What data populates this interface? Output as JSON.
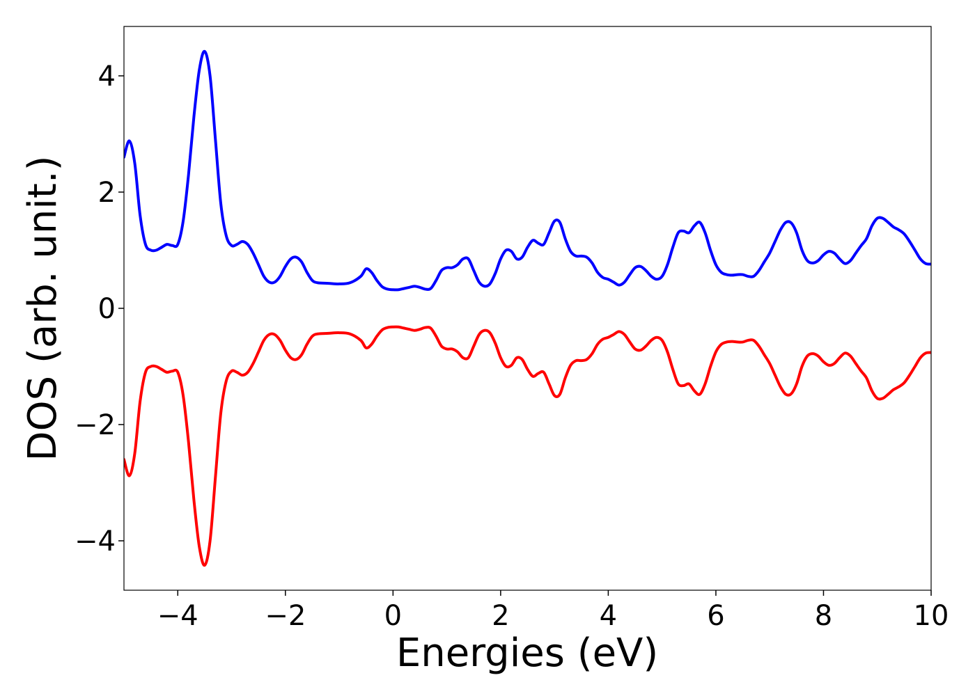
{
  "chart_data": {
    "type": "line",
    "title": "",
    "xlabel": "Energies (eV)",
    "ylabel": "DOS (arb. unit.)",
    "xlim": [
      -5,
      10
    ],
    "ylim": [
      -4.85,
      4.85
    ],
    "xticks": [
      -4,
      -2,
      0,
      2,
      4,
      6,
      8,
      10
    ],
    "xtick_labels": [
      "−4",
      "−2",
      "0",
      "2",
      "4",
      "6",
      "8",
      "10"
    ],
    "yticks": [
      -4,
      -2,
      0,
      2,
      4
    ],
    "ytick_labels": [
      "−4",
      "−2",
      "0",
      "2",
      "4"
    ],
    "grid": false,
    "legend": "none",
    "series": [
      {
        "color": "#0000ff",
        "points": [
          [
            -5.0,
            2.6
          ],
          [
            -4.9,
            2.88
          ],
          [
            -4.8,
            2.5
          ],
          [
            -4.7,
            1.6
          ],
          [
            -4.6,
            1.1
          ],
          [
            -4.5,
            1.0
          ],
          [
            -4.4,
            1.0
          ],
          [
            -4.3,
            1.05
          ],
          [
            -4.2,
            1.1
          ],
          [
            -4.1,
            1.08
          ],
          [
            -4.0,
            1.1
          ],
          [
            -3.9,
            1.5
          ],
          [
            -3.8,
            2.3
          ],
          [
            -3.7,
            3.3
          ],
          [
            -3.6,
            4.1
          ],
          [
            -3.5,
            4.42
          ],
          [
            -3.4,
            4.0
          ],
          [
            -3.3,
            2.9
          ],
          [
            -3.2,
            1.8
          ],
          [
            -3.1,
            1.25
          ],
          [
            -3.0,
            1.08
          ],
          [
            -2.9,
            1.1
          ],
          [
            -2.8,
            1.15
          ],
          [
            -2.7,
            1.1
          ],
          [
            -2.6,
            0.95
          ],
          [
            -2.5,
            0.75
          ],
          [
            -2.4,
            0.55
          ],
          [
            -2.3,
            0.45
          ],
          [
            -2.2,
            0.45
          ],
          [
            -2.1,
            0.55
          ],
          [
            -2.0,
            0.72
          ],
          [
            -1.9,
            0.85
          ],
          [
            -1.8,
            0.88
          ],
          [
            -1.7,
            0.8
          ],
          [
            -1.6,
            0.62
          ],
          [
            -1.5,
            0.48
          ],
          [
            -1.4,
            0.44
          ],
          [
            -1.2,
            0.43
          ],
          [
            -1.0,
            0.42
          ],
          [
            -0.8,
            0.44
          ],
          [
            -0.6,
            0.55
          ],
          [
            -0.5,
            0.68
          ],
          [
            -0.4,
            0.62
          ],
          [
            -0.3,
            0.48
          ],
          [
            -0.2,
            0.37
          ],
          [
            -0.1,
            0.33
          ],
          [
            0.0,
            0.32
          ],
          [
            0.1,
            0.32
          ],
          [
            0.2,
            0.34
          ],
          [
            0.3,
            0.36
          ],
          [
            0.4,
            0.38
          ],
          [
            0.5,
            0.36
          ],
          [
            0.6,
            0.33
          ],
          [
            0.7,
            0.34
          ],
          [
            0.8,
            0.48
          ],
          [
            0.9,
            0.65
          ],
          [
            1.0,
            0.7
          ],
          [
            1.1,
            0.7
          ],
          [
            1.2,
            0.75
          ],
          [
            1.3,
            0.85
          ],
          [
            1.4,
            0.85
          ],
          [
            1.5,
            0.65
          ],
          [
            1.6,
            0.45
          ],
          [
            1.7,
            0.38
          ],
          [
            1.8,
            0.42
          ],
          [
            1.9,
            0.6
          ],
          [
            2.0,
            0.85
          ],
          [
            2.1,
            1.0
          ],
          [
            2.2,
            0.98
          ],
          [
            2.3,
            0.85
          ],
          [
            2.4,
            0.88
          ],
          [
            2.5,
            1.05
          ],
          [
            2.6,
            1.17
          ],
          [
            2.7,
            1.12
          ],
          [
            2.8,
            1.1
          ],
          [
            2.9,
            1.3
          ],
          [
            3.0,
            1.5
          ],
          [
            3.1,
            1.48
          ],
          [
            3.2,
            1.2
          ],
          [
            3.3,
            0.98
          ],
          [
            3.4,
            0.9
          ],
          [
            3.5,
            0.9
          ],
          [
            3.6,
            0.88
          ],
          [
            3.7,
            0.78
          ],
          [
            3.8,
            0.62
          ],
          [
            3.9,
            0.53
          ],
          [
            4.0,
            0.5
          ],
          [
            4.1,
            0.45
          ],
          [
            4.2,
            0.4
          ],
          [
            4.3,
            0.45
          ],
          [
            4.4,
            0.58
          ],
          [
            4.5,
            0.7
          ],
          [
            4.6,
            0.72
          ],
          [
            4.7,
            0.65
          ],
          [
            4.8,
            0.55
          ],
          [
            4.9,
            0.5
          ],
          [
            5.0,
            0.55
          ],
          [
            5.1,
            0.75
          ],
          [
            5.2,
            1.05
          ],
          [
            5.3,
            1.3
          ],
          [
            5.4,
            1.33
          ],
          [
            5.5,
            1.3
          ],
          [
            5.6,
            1.42
          ],
          [
            5.7,
            1.48
          ],
          [
            5.8,
            1.3
          ],
          [
            5.9,
            1.0
          ],
          [
            6.0,
            0.75
          ],
          [
            6.1,
            0.62
          ],
          [
            6.2,
            0.58
          ],
          [
            6.3,
            0.57
          ],
          [
            6.4,
            0.58
          ],
          [
            6.5,
            0.58
          ],
          [
            6.6,
            0.55
          ],
          [
            6.7,
            0.55
          ],
          [
            6.8,
            0.65
          ],
          [
            6.9,
            0.8
          ],
          [
            7.0,
            0.95
          ],
          [
            7.1,
            1.15
          ],
          [
            7.2,
            1.35
          ],
          [
            7.3,
            1.48
          ],
          [
            7.4,
            1.47
          ],
          [
            7.5,
            1.3
          ],
          [
            7.6,
            1.0
          ],
          [
            7.7,
            0.82
          ],
          [
            7.8,
            0.78
          ],
          [
            7.9,
            0.82
          ],
          [
            8.0,
            0.92
          ],
          [
            8.1,
            0.98
          ],
          [
            8.2,
            0.95
          ],
          [
            8.3,
            0.85
          ],
          [
            8.4,
            0.77
          ],
          [
            8.5,
            0.82
          ],
          [
            8.6,
            0.95
          ],
          [
            8.7,
            1.08
          ],
          [
            8.8,
            1.2
          ],
          [
            8.9,
            1.42
          ],
          [
            9.0,
            1.55
          ],
          [
            9.1,
            1.55
          ],
          [
            9.2,
            1.48
          ],
          [
            9.3,
            1.4
          ],
          [
            9.4,
            1.35
          ],
          [
            9.5,
            1.28
          ],
          [
            9.6,
            1.15
          ],
          [
            9.7,
            1.0
          ],
          [
            9.8,
            0.85
          ],
          [
            9.9,
            0.77
          ],
          [
            10.0,
            0.76
          ]
        ]
      },
      {
        "color": "#ff0000",
        "points": [
          [
            -5.0,
            -2.6
          ],
          [
            -4.9,
            -2.88
          ],
          [
            -4.8,
            -2.5
          ],
          [
            -4.7,
            -1.6
          ],
          [
            -4.6,
            -1.1
          ],
          [
            -4.5,
            -1.0
          ],
          [
            -4.4,
            -1.0
          ],
          [
            -4.3,
            -1.05
          ],
          [
            -4.2,
            -1.1
          ],
          [
            -4.1,
            -1.08
          ],
          [
            -4.0,
            -1.1
          ],
          [
            -3.9,
            -1.5
          ],
          [
            -3.8,
            -2.3
          ],
          [
            -3.7,
            -3.3
          ],
          [
            -3.6,
            -4.1
          ],
          [
            -3.5,
            -4.42
          ],
          [
            -3.4,
            -4.0
          ],
          [
            -3.3,
            -2.9
          ],
          [
            -3.2,
            -1.8
          ],
          [
            -3.1,
            -1.25
          ],
          [
            -3.0,
            -1.08
          ],
          [
            -2.9,
            -1.1
          ],
          [
            -2.8,
            -1.15
          ],
          [
            -2.7,
            -1.1
          ],
          [
            -2.6,
            -0.95
          ],
          [
            -2.5,
            -0.75
          ],
          [
            -2.4,
            -0.55
          ],
          [
            -2.3,
            -0.45
          ],
          [
            -2.2,
            -0.45
          ],
          [
            -2.1,
            -0.55
          ],
          [
            -2.0,
            -0.72
          ],
          [
            -1.9,
            -0.85
          ],
          [
            -1.8,
            -0.88
          ],
          [
            -1.7,
            -0.8
          ],
          [
            -1.6,
            -0.62
          ],
          [
            -1.5,
            -0.48
          ],
          [
            -1.4,
            -0.44
          ],
          [
            -1.2,
            -0.43
          ],
          [
            -1.0,
            -0.42
          ],
          [
            -0.8,
            -0.44
          ],
          [
            -0.6,
            -0.55
          ],
          [
            -0.5,
            -0.68
          ],
          [
            -0.4,
            -0.62
          ],
          [
            -0.3,
            -0.48
          ],
          [
            -0.2,
            -0.37
          ],
          [
            -0.1,
            -0.33
          ],
          [
            0.0,
            -0.32
          ],
          [
            0.1,
            -0.32
          ],
          [
            0.2,
            -0.34
          ],
          [
            0.3,
            -0.36
          ],
          [
            0.4,
            -0.38
          ],
          [
            0.5,
            -0.36
          ],
          [
            0.6,
            -0.33
          ],
          [
            0.7,
            -0.34
          ],
          [
            0.8,
            -0.48
          ],
          [
            0.9,
            -0.65
          ],
          [
            1.0,
            -0.7
          ],
          [
            1.1,
            -0.7
          ],
          [
            1.2,
            -0.75
          ],
          [
            1.3,
            -0.85
          ],
          [
            1.4,
            -0.85
          ],
          [
            1.5,
            -0.65
          ],
          [
            1.6,
            -0.45
          ],
          [
            1.7,
            -0.38
          ],
          [
            1.8,
            -0.42
          ],
          [
            1.9,
            -0.6
          ],
          [
            2.0,
            -0.85
          ],
          [
            2.1,
            -1.0
          ],
          [
            2.2,
            -0.98
          ],
          [
            2.3,
            -0.85
          ],
          [
            2.4,
            -0.88
          ],
          [
            2.5,
            -1.05
          ],
          [
            2.6,
            -1.17
          ],
          [
            2.7,
            -1.12
          ],
          [
            2.8,
            -1.1
          ],
          [
            2.9,
            -1.3
          ],
          [
            3.0,
            -1.5
          ],
          [
            3.1,
            -1.48
          ],
          [
            3.2,
            -1.2
          ],
          [
            3.3,
            -0.98
          ],
          [
            3.4,
            -0.9
          ],
          [
            3.5,
            -0.9
          ],
          [
            3.6,
            -0.88
          ],
          [
            3.7,
            -0.78
          ],
          [
            3.8,
            -0.62
          ],
          [
            3.9,
            -0.53
          ],
          [
            4.0,
            -0.5
          ],
          [
            4.1,
            -0.45
          ],
          [
            4.2,
            -0.4
          ],
          [
            4.3,
            -0.45
          ],
          [
            4.4,
            -0.58
          ],
          [
            4.5,
            -0.7
          ],
          [
            4.6,
            -0.72
          ],
          [
            4.7,
            -0.65
          ],
          [
            4.8,
            -0.55
          ],
          [
            4.9,
            -0.5
          ],
          [
            5.0,
            -0.55
          ],
          [
            5.1,
            -0.75
          ],
          [
            5.2,
            -1.05
          ],
          [
            5.3,
            -1.3
          ],
          [
            5.4,
            -1.33
          ],
          [
            5.5,
            -1.3
          ],
          [
            5.6,
            -1.42
          ],
          [
            5.7,
            -1.48
          ],
          [
            5.8,
            -1.3
          ],
          [
            5.9,
            -1.0
          ],
          [
            6.0,
            -0.75
          ],
          [
            6.1,
            -0.62
          ],
          [
            6.2,
            -0.58
          ],
          [
            6.3,
            -0.57
          ],
          [
            6.4,
            -0.58
          ],
          [
            6.5,
            -0.58
          ],
          [
            6.6,
            -0.55
          ],
          [
            6.7,
            -0.55
          ],
          [
            6.8,
            -0.65
          ],
          [
            6.9,
            -0.8
          ],
          [
            7.0,
            -0.95
          ],
          [
            7.1,
            -1.15
          ],
          [
            7.2,
            -1.35
          ],
          [
            7.3,
            -1.48
          ],
          [
            7.4,
            -1.47
          ],
          [
            7.5,
            -1.3
          ],
          [
            7.6,
            -1.0
          ],
          [
            7.7,
            -0.82
          ],
          [
            7.8,
            -0.78
          ],
          [
            7.9,
            -0.82
          ],
          [
            8.0,
            -0.92
          ],
          [
            8.1,
            -0.98
          ],
          [
            8.2,
            -0.95
          ],
          [
            8.3,
            -0.85
          ],
          [
            8.4,
            -0.77
          ],
          [
            8.5,
            -0.82
          ],
          [
            8.6,
            -0.95
          ],
          [
            8.7,
            -1.08
          ],
          [
            8.8,
            -1.2
          ],
          [
            8.9,
            -1.42
          ],
          [
            9.0,
            -1.55
          ],
          [
            9.1,
            -1.55
          ],
          [
            9.2,
            -1.48
          ],
          [
            9.3,
            -1.4
          ],
          [
            9.4,
            -1.35
          ],
          [
            9.5,
            -1.28
          ],
          [
            9.6,
            -1.15
          ],
          [
            9.7,
            -1.0
          ],
          [
            9.8,
            -0.85
          ],
          [
            9.9,
            -0.77
          ],
          [
            10.0,
            -0.76
          ]
        ]
      }
    ]
  }
}
